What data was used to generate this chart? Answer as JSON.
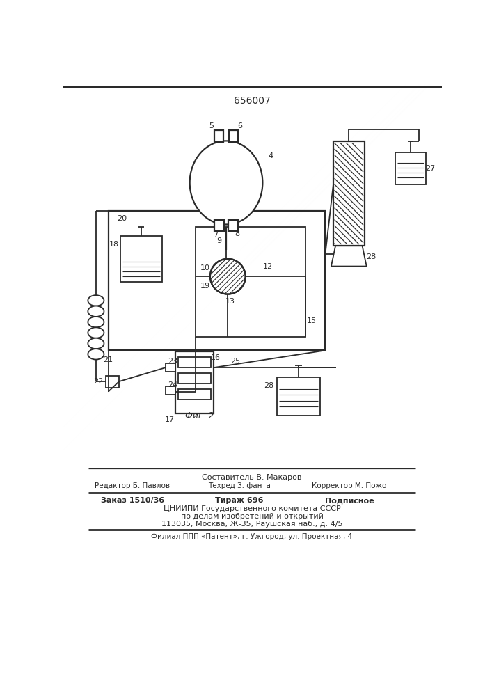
{
  "title": "656007",
  "fig_caption": "Фиг. 2",
  "bg_color": "#ffffff",
  "line_color": "#2a2a2a",
  "footer_lines": [
    "Составитель В. Макаров",
    "Редактор Б. Павлов",
    "Техред З. фанта",
    "Корректор М. Пожо",
    "Заказ 1510/36",
    "Тираж 696",
    "Подписное",
    "ЦНИИПИ Государственного комитета СССР",
    "по делам изобретений и открытий",
    "113035, Москва, Ж-35, Раушская наб., д. 4/5",
    "Филиал ППП «Патент», г. Ужгород, ул. Проектная, 4"
  ]
}
